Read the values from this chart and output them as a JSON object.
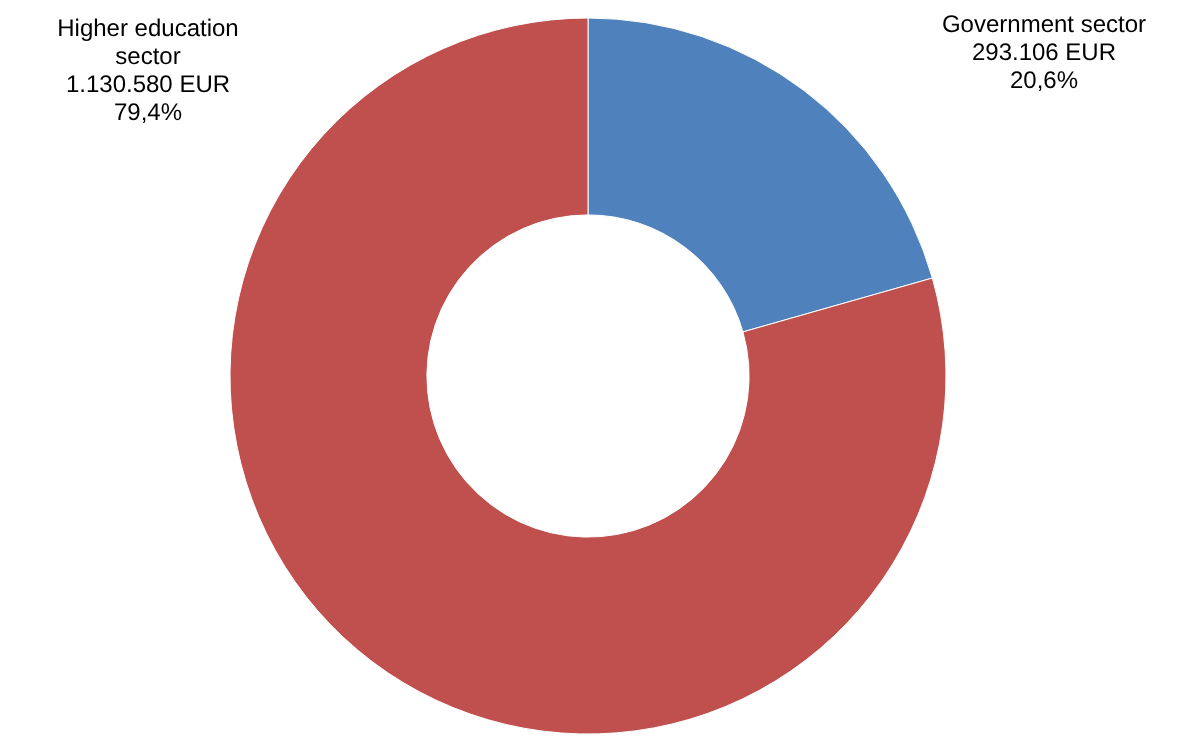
{
  "chart_data": {
    "type": "donut",
    "categories": [
      "Government sector",
      "Higher education sector"
    ],
    "values": [
      293106,
      1130580
    ],
    "colors": [
      "#4f81bd",
      "#c0504d"
    ],
    "value_labels": [
      "293.106 EUR\n20,6%",
      "1.130.580 EUR\n79,4%"
    ],
    "legend": false
  }
}
